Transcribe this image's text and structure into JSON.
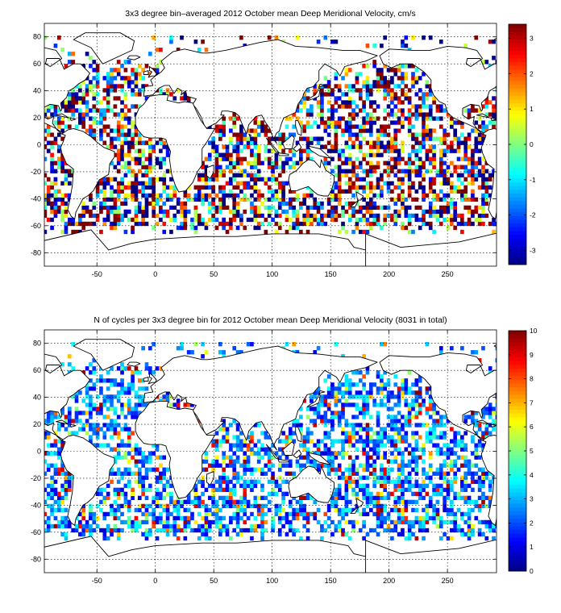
{
  "chart_data": [
    {
      "type": "heatmap",
      "title": "3x3 degree bin–averaged 2012 October mean Deep Meridional Velocity, cm/s",
      "xlabel": "",
      "ylabel": "",
      "xlim": [
        -95,
        292
      ],
      "ylim": [
        -90,
        90
      ],
      "xticks": [
        -50,
        0,
        50,
        100,
        150,
        200,
        250
      ],
      "yticks": [
        -80,
        -60,
        -40,
        -20,
        0,
        20,
        40,
        60,
        80
      ],
      "grid": true,
      "bin_deg": 3,
      "colorbar": {
        "min": -3.4,
        "max": 3.4,
        "ticks": [
          -3,
          -2,
          -1,
          0,
          1,
          2,
          3
        ],
        "colormap": "jet"
      },
      "value_range": [
        -3.4,
        3.4
      ],
      "seed": 7
    },
    {
      "type": "heatmap",
      "title": "N of cycles per 3x3 degree bin for 2012 October mean Deep Meridional Velocity (8031 in total)",
      "xlabel": "",
      "ylabel": "",
      "xlim": [
        -95,
        292
      ],
      "ylim": [
        -90,
        90
      ],
      "xticks": [
        -50,
        0,
        50,
        100,
        150,
        200,
        250
      ],
      "yticks": [
        -80,
        -60,
        -40,
        -20,
        0,
        20,
        40,
        60,
        80
      ],
      "grid": true,
      "bin_deg": 3,
      "total_count": 8031,
      "colorbar": {
        "min": 0,
        "max": 10,
        "ticks": [
          0,
          1,
          2,
          3,
          4,
          5,
          6,
          7,
          8,
          9,
          10
        ],
        "colormap": "jet"
      },
      "value_range": [
        0,
        10
      ],
      "seed": 11
    }
  ]
}
